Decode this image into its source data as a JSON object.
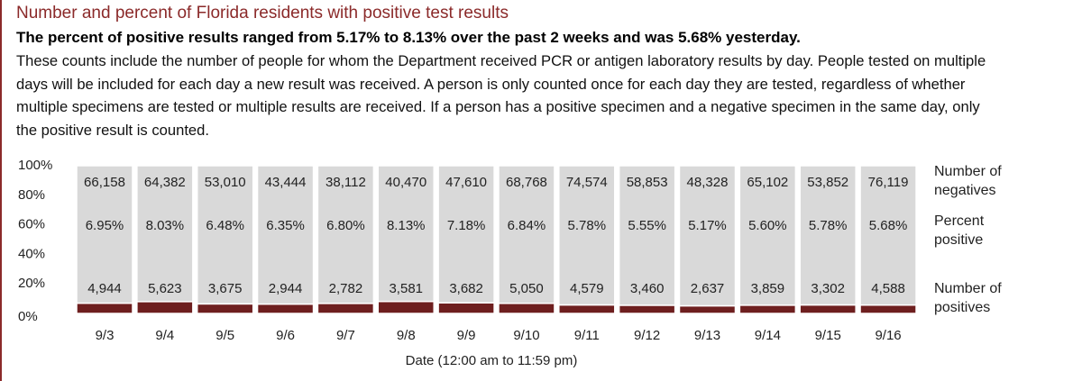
{
  "chart_data": {
    "type": "stacked_percent_bar",
    "title": "Number and percent of Florida residents with positive test results",
    "subtitle": "The percent of positive results ranged from 5.17% to 8.13% over the past 2 weeks and was 5.68% yesterday.",
    "description": "These counts include the number of people for whom the Department received PCR or antigen laboratory results by day. People tested on multiple days will be included for each day a new result was received. A person is only counted once for each day they are tested, regardless of whether multiple specimens are tested or multiple results are received. If a person has a positive specimen and a negative specimen in the same day, only the positive result is counted.",
    "x_label": "Date (12:00 am to 11:59 pm)",
    "categories": [
      "9/3",
      "9/4",
      "9/5",
      "9/6",
      "9/7",
      "9/8",
      "9/9",
      "9/10",
      "9/11",
      "9/12",
      "9/13",
      "9/14",
      "9/15",
      "9/16"
    ],
    "series": [
      {
        "name": "Number of positives",
        "color": "#6e1f1f",
        "values": [
          4944,
          5623,
          3675,
          2944,
          2782,
          3581,
          3682,
          5050,
          4579,
          3460,
          2637,
          3859,
          3302,
          4588
        ],
        "value_labels": [
          "4,944",
          "5,623",
          "3,675",
          "2,944",
          "2,782",
          "3,581",
          "3,682",
          "5,050",
          "4,579",
          "3,460",
          "2,637",
          "3,859",
          "3,302",
          "4,588"
        ]
      },
      {
        "name": "Number of negatives",
        "color": "#d9d9d9",
        "values": [
          66158,
          64382,
          53010,
          43444,
          38112,
          40470,
          47610,
          68768,
          74574,
          58853,
          48328,
          65102,
          53852,
          76119
        ],
        "value_labels": [
          "66,158",
          "64,382",
          "53,010",
          "43,444",
          "38,112",
          "40,470",
          "47,610",
          "68,768",
          "74,574",
          "58,853",
          "48,328",
          "65,102",
          "53,852",
          "76,119"
        ]
      }
    ],
    "percent_positive": {
      "name": "Percent positive",
      "values": [
        6.95,
        8.03,
        6.48,
        6.35,
        6.8,
        8.13,
        7.18,
        6.84,
        5.78,
        5.55,
        5.17,
        5.6,
        5.78,
        5.68
      ],
      "value_labels": [
        "6.95%",
        "8.03%",
        "6.48%",
        "6.35%",
        "6.80%",
        "8.13%",
        "7.18%",
        "6.84%",
        "5.78%",
        "5.55%",
        "5.17%",
        "5.60%",
        "5.78%",
        "5.68%"
      ]
    },
    "ylim": [
      0,
      100
    ],
    "yticks": [
      {
        "value": 0,
        "label": "0%"
      },
      {
        "value": 20,
        "label": "20%"
      },
      {
        "value": 40,
        "label": "40%"
      },
      {
        "value": 60,
        "label": "60%"
      },
      {
        "value": 80,
        "label": "80%"
      },
      {
        "value": 100,
        "label": "100%"
      }
    ]
  }
}
